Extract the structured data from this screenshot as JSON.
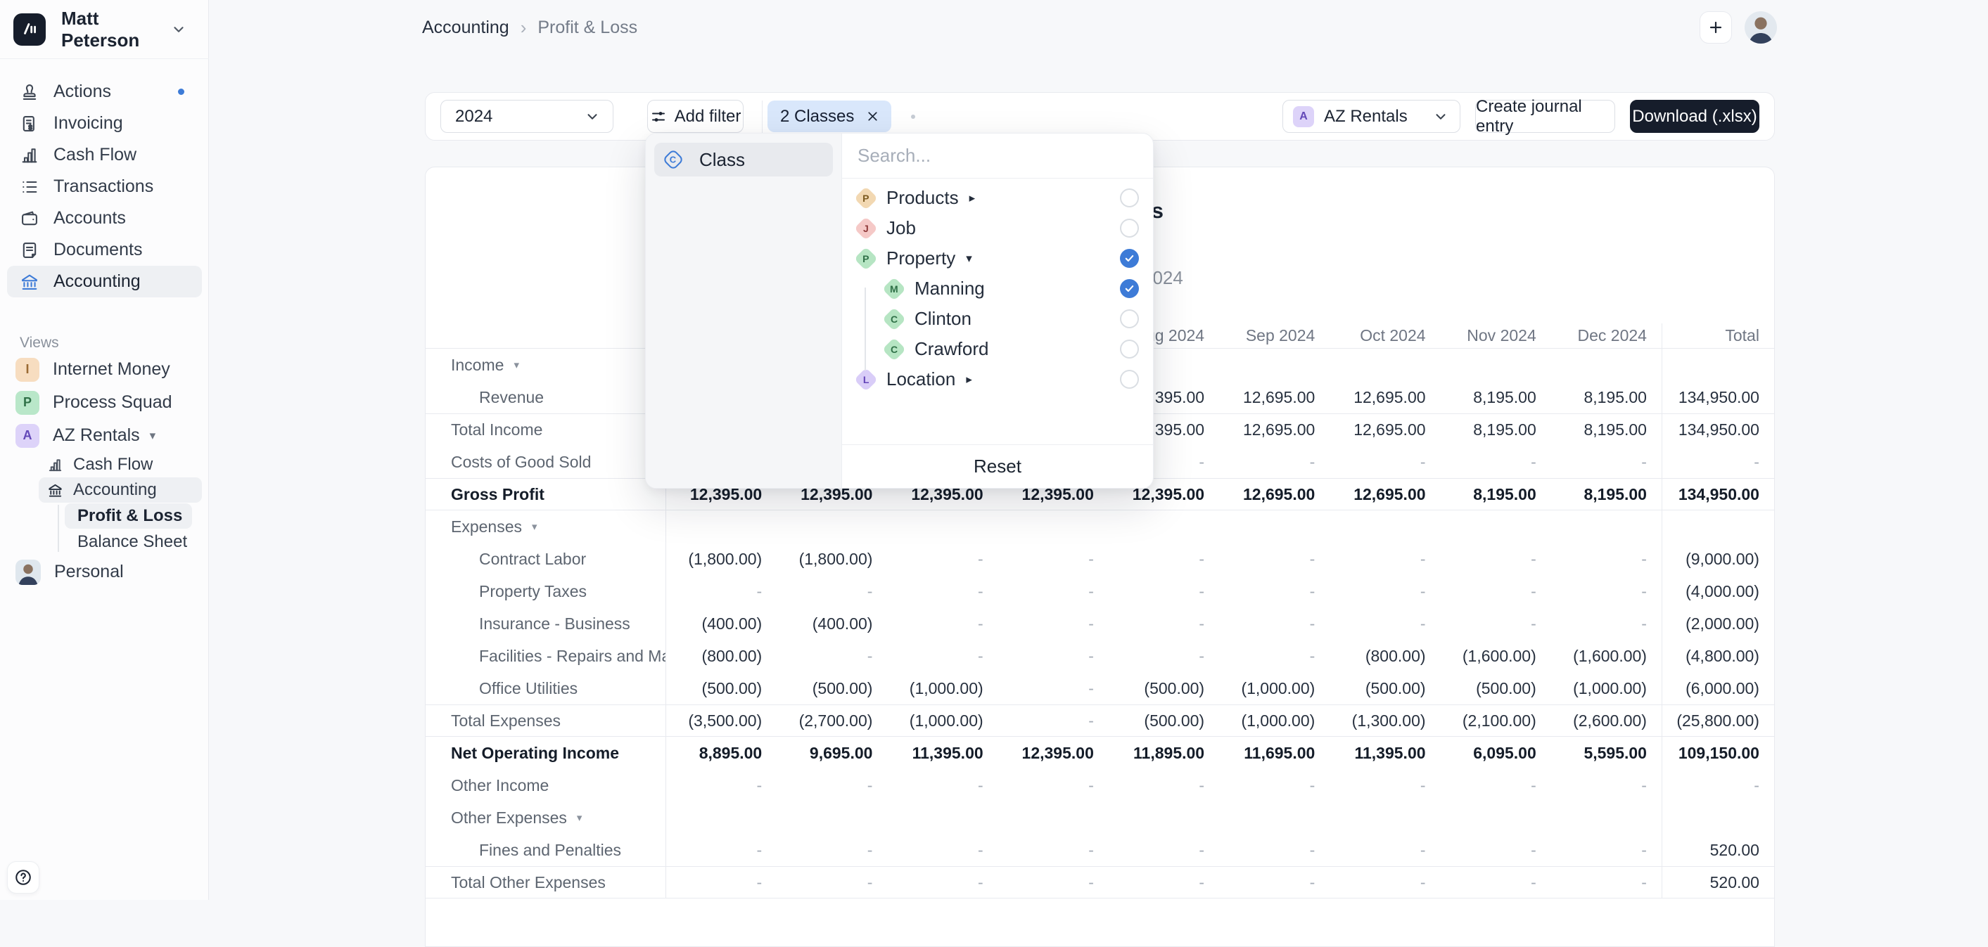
{
  "app": {
    "accent": "#3d7bd7",
    "dark": "#161d2b"
  },
  "sidebar": {
    "user": {
      "name": "Matt Peterson"
    },
    "nav": [
      {
        "label": "Actions",
        "icon": "stamp-icon",
        "notification_dot": true
      },
      {
        "label": "Invoicing",
        "icon": "invoice-icon"
      },
      {
        "label": "Cash Flow",
        "icon": "bar-chart-icon"
      },
      {
        "label": "Transactions",
        "icon": "list-icon"
      },
      {
        "label": "Accounts",
        "icon": "wallet-icon"
      },
      {
        "label": "Documents",
        "icon": "document-icon"
      },
      {
        "label": "Accounting",
        "icon": "bank-icon",
        "active": true
      }
    ],
    "views_label": "Views",
    "views": [
      {
        "label": "Internet Money",
        "badge": "I",
        "badge_bg": "#f7ddc0",
        "badge_color": "#9a6a33"
      },
      {
        "label": "Process Squad",
        "badge": "P",
        "badge_bg": "#b9e7c9",
        "badge_color": "#2f7047"
      },
      {
        "label": "AZ Rentals",
        "badge": "A",
        "badge_bg": "#ddd3f9",
        "badge_color": "#6348b8",
        "expanded": true
      },
      {
        "label": "Personal",
        "avatar": true
      }
    ],
    "az_children": [
      {
        "label": "Cash Flow",
        "icon": "bar-chart-icon"
      },
      {
        "label": "Accounting",
        "icon": "bank-icon",
        "active": true
      }
    ],
    "accounting_children": [
      {
        "label": "Profit & Loss",
        "active": true
      },
      {
        "label": "Balance Sheet"
      }
    ]
  },
  "header": {
    "breadcrumb": {
      "parent": "Accounting",
      "current": "Profit & Loss"
    }
  },
  "toolbar": {
    "year_select": "2024",
    "add_filter_label": "Add filter",
    "filter_chip": "2 Classes",
    "company_select": {
      "badge": "A",
      "label": "AZ Rentals"
    },
    "create_journal_label": "Create journal entry",
    "download_label": "Download (.xlsx)"
  },
  "filter_popover": {
    "category": {
      "label": "Class",
      "selected": true
    },
    "search_placeholder": "Search...",
    "items": [
      {
        "label": "Products",
        "badge": "P",
        "color": "orange",
        "expand": "right",
        "checked": false,
        "level": 0
      },
      {
        "label": "Job",
        "badge": "J",
        "color": "red",
        "expand": "",
        "checked": false,
        "level": 0
      },
      {
        "label": "Property",
        "badge": "P",
        "color": "green",
        "expand": "down",
        "checked": true,
        "level": 0
      },
      {
        "label": "Manning",
        "badge": "M",
        "color": "green",
        "expand": "",
        "checked": true,
        "level": 1
      },
      {
        "label": "Clinton",
        "badge": "C",
        "color": "green",
        "expand": "",
        "checked": false,
        "level": 1
      },
      {
        "label": "Crawford",
        "badge": "C",
        "color": "green",
        "expand": "",
        "checked": false,
        "level": 1
      },
      {
        "label": "Location",
        "badge": "L",
        "color": "purple",
        "expand": "right",
        "checked": false,
        "level": 0
      }
    ],
    "reset_label": "Reset"
  },
  "report": {
    "title": "AZ Rentals",
    "subtitle": "2024",
    "columns": [
      "",
      "",
      "",
      "",
      "Aug 2024",
      "Sep 2024",
      "Oct 2024",
      "Nov 2024",
      "Dec 2024",
      "Total"
    ],
    "rows": [
      {
        "name": "income",
        "label": "Income",
        "style": "section",
        "caret": true,
        "cells": [
          "",
          "",
          "",
          "",
          "",
          "",
          "",
          "",
          "",
          ""
        ]
      },
      {
        "name": "revenue",
        "label": "Revenue",
        "style": "detail",
        "cells": [
          "",
          "",
          "",
          "",
          "12,395.00",
          "12,695.00",
          "12,695.00",
          "8,195.00",
          "8,195.00",
          "134,950.00"
        ]
      },
      {
        "name": "total-income",
        "label": "Total Income",
        "style": "plain",
        "border": "t",
        "cells": [
          "",
          "",
          "",
          "",
          "12,395.00",
          "12,695.00",
          "12,695.00",
          "8,195.00",
          "8,195.00",
          "134,950.00"
        ]
      },
      {
        "name": "costs-of-good-sold",
        "label": "Costs of Good Sold",
        "style": "plain",
        "cells": [
          "",
          "",
          "",
          "",
          "-",
          "-",
          "-",
          "-",
          "-",
          "-"
        ]
      },
      {
        "name": "gross-profit",
        "label": "Gross Profit",
        "style": "bold",
        "border": "tb",
        "cells": [
          "12,395.00",
          "12,395.00",
          "12,395.00",
          "12,395.00",
          "12,395.00",
          "12,695.00",
          "12,695.00",
          "8,195.00",
          "8,195.00",
          "134,950.00"
        ]
      },
      {
        "name": "expenses",
        "label": "Expenses",
        "style": "section",
        "caret": true,
        "cells": [
          "",
          "",
          "",
          "",
          "",
          "",
          "",
          "",
          "",
          ""
        ]
      },
      {
        "name": "contract-labor",
        "label": "Contract Labor",
        "style": "detail",
        "cells": [
          "(1,800.00)",
          "(1,800.00)",
          "-",
          "-",
          "-",
          "-",
          "-",
          "-",
          "-",
          "(9,000.00)"
        ]
      },
      {
        "name": "property-taxes",
        "label": "Property Taxes",
        "style": "detail",
        "cells": [
          "-",
          "-",
          "-",
          "-",
          "-",
          "-",
          "-",
          "-",
          "-",
          "(4,000.00)"
        ]
      },
      {
        "name": "insurance-business",
        "label": "Insurance - Business",
        "style": "detail",
        "cells": [
          "(400.00)",
          "(400.00)",
          "-",
          "-",
          "-",
          "-",
          "-",
          "-",
          "-",
          "(2,000.00)"
        ]
      },
      {
        "name": "facilities-repairs",
        "label": "Facilities - Repairs and Maintenance",
        "style": "detail",
        "cells": [
          "(800.00)",
          "-",
          "-",
          "-",
          "-",
          "-",
          "(800.00)",
          "(1,600.00)",
          "(1,600.00)",
          "(4,800.00)"
        ]
      },
      {
        "name": "office-utilities",
        "label": "Office Utilities",
        "style": "detail",
        "cells": [
          "(500.00)",
          "(500.00)",
          "(1,000.00)",
          "-",
          "(500.00)",
          "(1,000.00)",
          "(500.00)",
          "(500.00)",
          "(1,000.00)",
          "(6,000.00)"
        ]
      },
      {
        "name": "total-expenses",
        "label": "Total Expenses",
        "style": "plain",
        "border": "tb",
        "cells": [
          "(3,500.00)",
          "(2,700.00)",
          "(1,000.00)",
          "-",
          "(500.00)",
          "(1,000.00)",
          "(1,300.00)",
          "(2,100.00)",
          "(2,600.00)",
          "(25,800.00)"
        ]
      },
      {
        "name": "net-operating-income",
        "label": "Net Operating Income",
        "style": "bold",
        "cells": [
          "8,895.00",
          "9,695.00",
          "11,395.00",
          "12,395.00",
          "11,895.00",
          "11,695.00",
          "11,395.00",
          "6,095.00",
          "5,595.00",
          "109,150.00"
        ]
      },
      {
        "name": "other-income",
        "label": "Other Income",
        "style": "plain",
        "cells": [
          "-",
          "-",
          "-",
          "-",
          "-",
          "-",
          "-",
          "-",
          "-",
          "-"
        ]
      },
      {
        "name": "other-expenses",
        "label": "Other Expenses",
        "style": "section",
        "caret": true,
        "cells": [
          "",
          "",
          "",
          "",
          "",
          "",
          "",
          "",
          "",
          ""
        ]
      },
      {
        "name": "fines-and-penalties",
        "label": "Fines and Penalties",
        "style": "detail",
        "cells": [
          "-",
          "-",
          "-",
          "-",
          "-",
          "-",
          "-",
          "-",
          "-",
          "520.00"
        ]
      },
      {
        "name": "total-other-expenses",
        "label": "Total Other Expenses",
        "style": "plain",
        "border": "tb",
        "cells": [
          "-",
          "-",
          "-",
          "-",
          "-",
          "-",
          "-",
          "-",
          "-",
          "520.00"
        ]
      }
    ]
  }
}
